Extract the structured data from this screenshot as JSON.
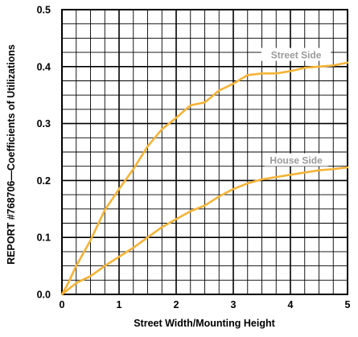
{
  "chart_data": {
    "type": "line",
    "title": "",
    "xlabel": "Street Width/Mounting Height",
    "ylabel": "REPORT #768706—Coefficients of Utilizations",
    "xlim": [
      0,
      5
    ],
    "ylim": [
      0,
      0.5
    ],
    "x_ticks": [
      "0",
      "1",
      "2",
      "3",
      "4",
      "5"
    ],
    "y_ticks": [
      "0.0",
      "0.1",
      "0.2",
      "0.3",
      "0.4",
      "0.5"
    ],
    "grid": true,
    "grid_minor_x_step": 0.25,
    "grid_minor_y_step": 0.025,
    "series": [
      {
        "name": "Street Side",
        "color": "#f5b335",
        "x": [
          0,
          0.1,
          0.25,
          0.5,
          0.75,
          1.0,
          1.25,
          1.5,
          1.75,
          2.0,
          2.25,
          2.5,
          2.75,
          3.0,
          3.25,
          3.5,
          3.75,
          4.0,
          4.25,
          4.5,
          4.75,
          5.0
        ],
        "y": [
          0,
          0.018,
          0.05,
          0.095,
          0.148,
          0.185,
          0.22,
          0.26,
          0.29,
          0.31,
          0.332,
          0.337,
          0.358,
          0.37,
          0.385,
          0.388,
          0.388,
          0.392,
          0.398,
          0.4,
          0.402,
          0.407
        ]
      },
      {
        "name": "House Side",
        "color": "#f5b335",
        "x": [
          0,
          0.25,
          0.5,
          0.75,
          1.0,
          1.25,
          1.5,
          1.75,
          2.0,
          2.25,
          2.5,
          2.75,
          3.0,
          3.25,
          3.5,
          3.75,
          4.0,
          4.25,
          4.5,
          4.75,
          5.0
        ],
        "y": [
          0,
          0.02,
          0.032,
          0.05,
          0.066,
          0.082,
          0.1,
          0.118,
          0.132,
          0.146,
          0.156,
          0.172,
          0.185,
          0.195,
          0.202,
          0.206,
          0.21,
          0.214,
          0.218,
          0.22,
          0.223
        ]
      }
    ],
    "series_labels": [
      {
        "text": "Street Side",
        "x": 4.1,
        "y": 0.42
      },
      {
        "text": "House Side",
        "x": 4.1,
        "y": 0.235
      }
    ]
  }
}
